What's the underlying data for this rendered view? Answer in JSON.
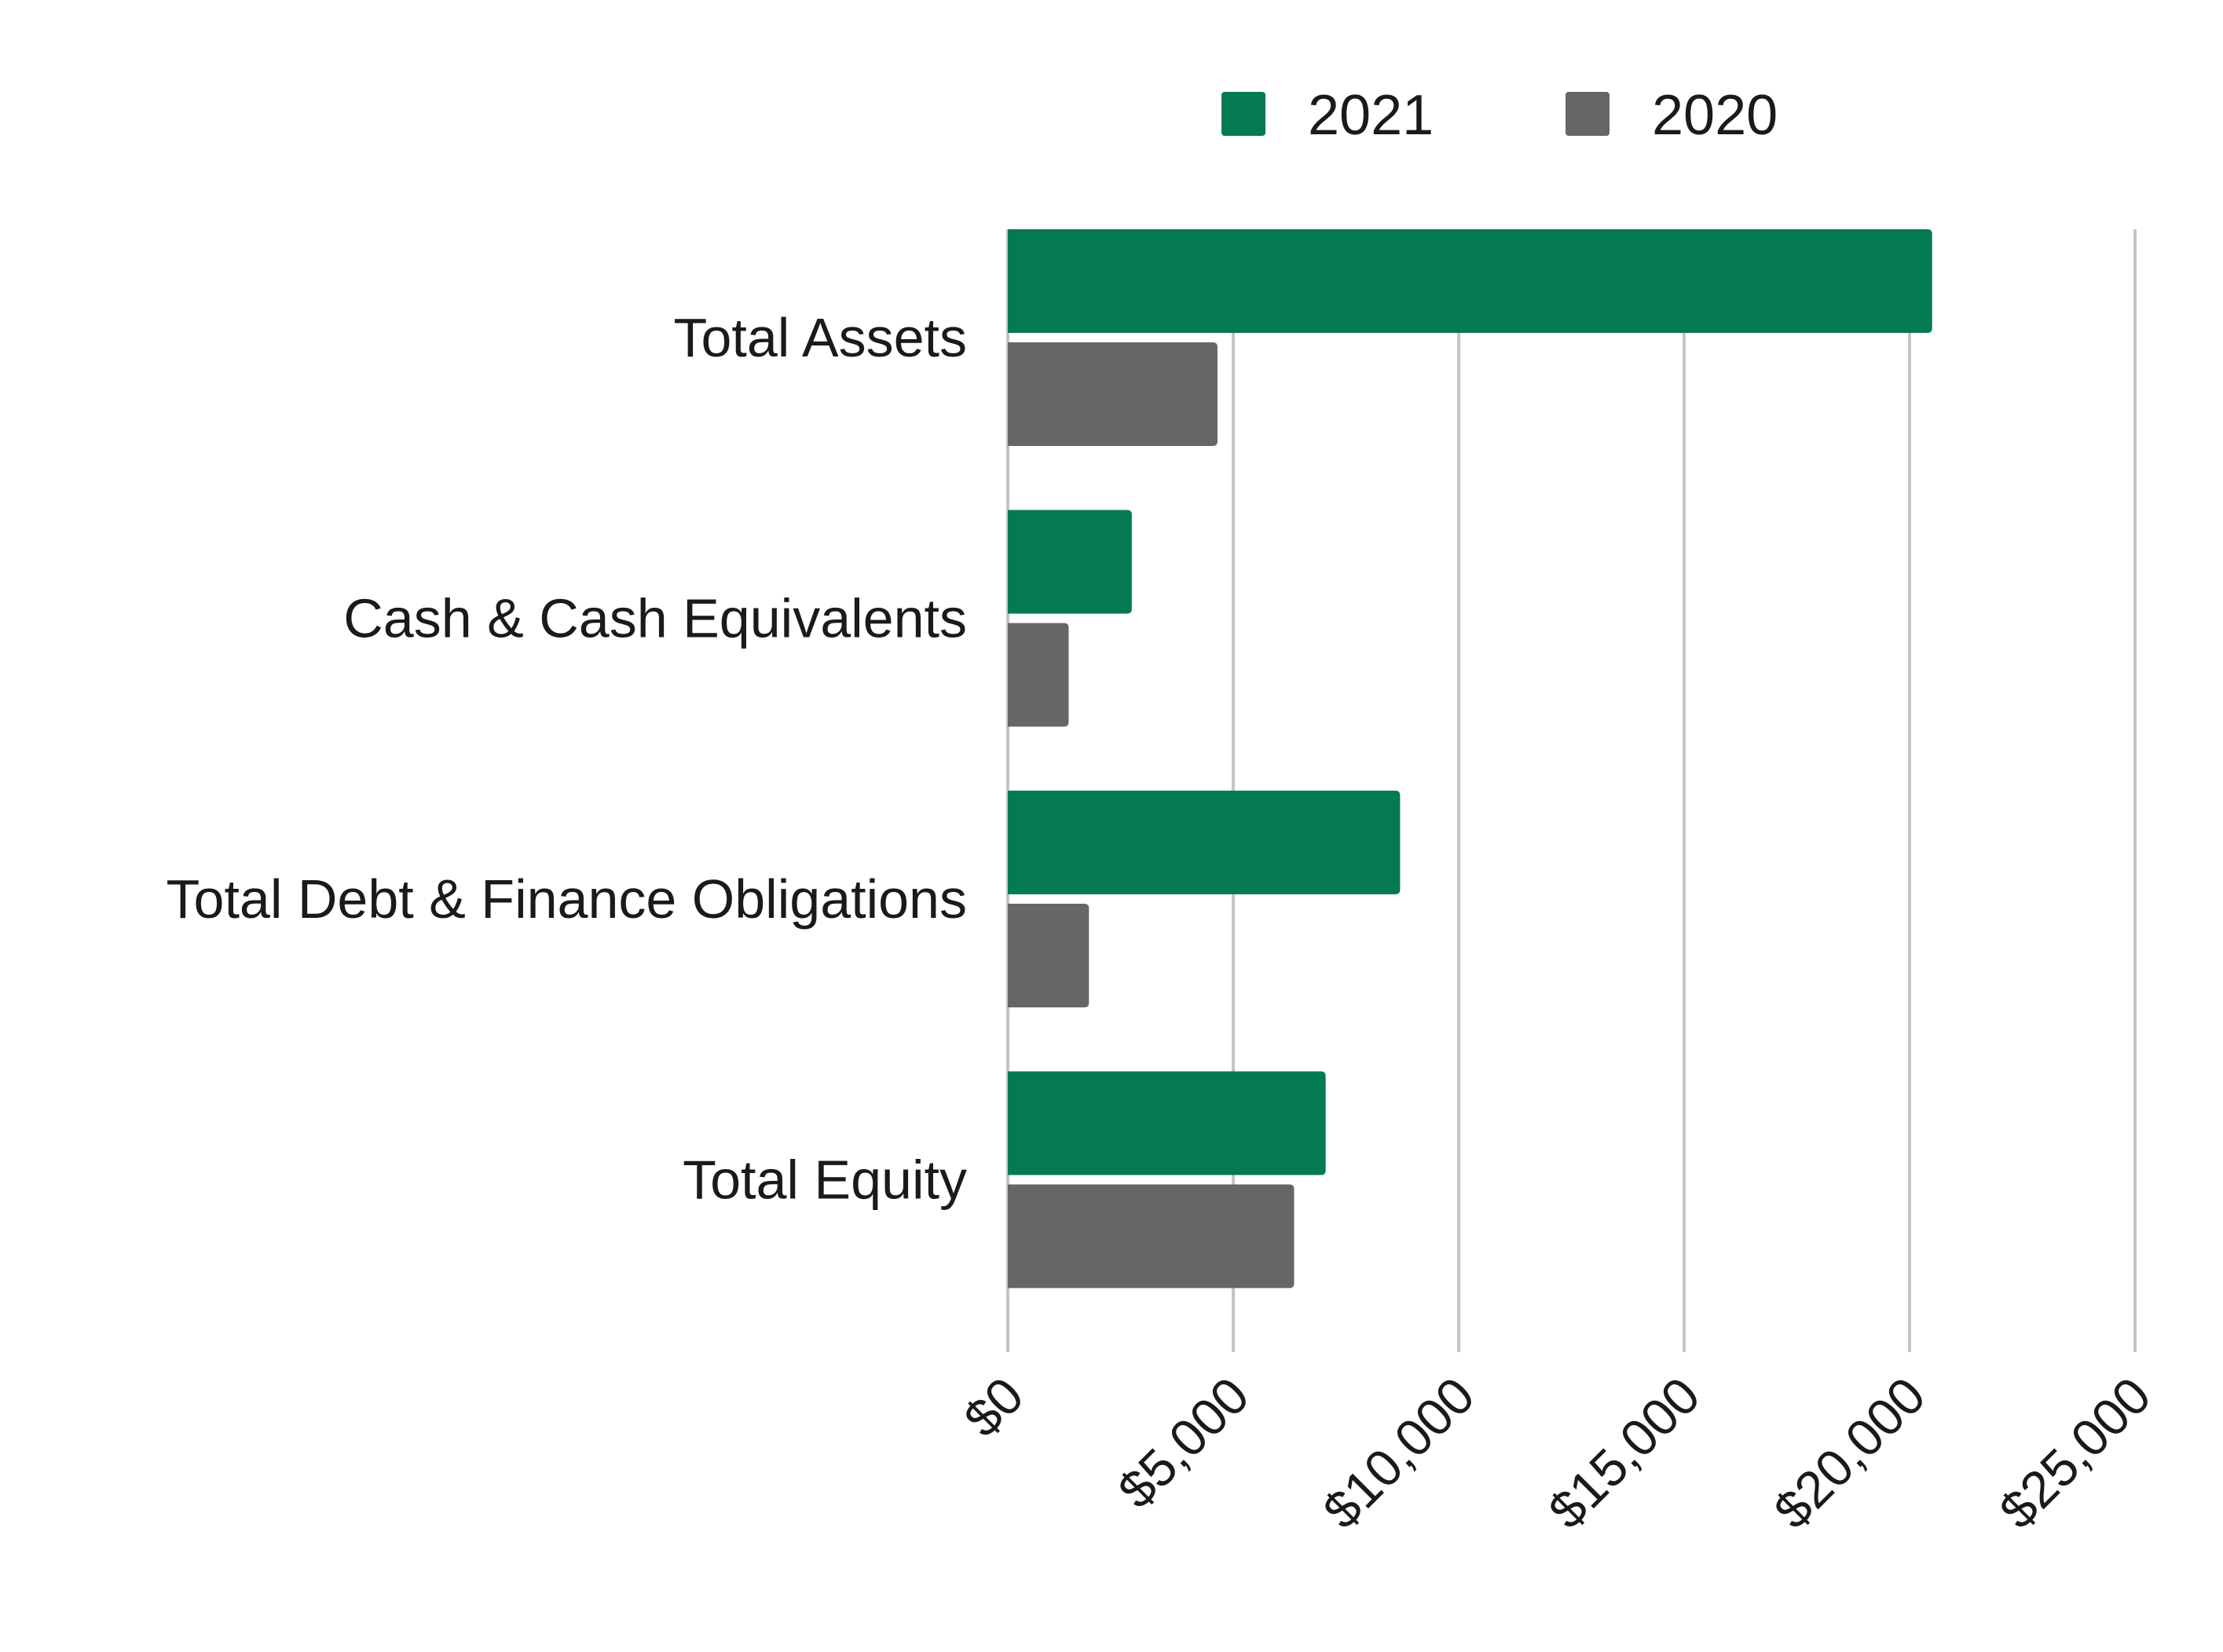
{
  "chart_data": {
    "type": "bar",
    "orientation": "horizontal",
    "categories": [
      "Total Assets",
      "Cash & Cash Equivalents",
      "Total Debt & Finance Obligations",
      "Total Equity"
    ],
    "series": [
      {
        "name": "2021",
        "color": "#037A52",
        "values": [
          20500,
          2750,
          8700,
          7050
        ]
      },
      {
        "name": "2020",
        "color": "#666666",
        "values": [
          4650,
          1350,
          1800,
          6350
        ]
      }
    ],
    "xlim": [
      0,
      25000
    ],
    "xticks": [
      0,
      5000,
      10000,
      15000,
      20000,
      25000
    ],
    "xtick_labels": [
      "$0",
      "$5,000",
      "$10,000",
      "$15,000",
      "$20,000",
      "$25,000"
    ],
    "title": "",
    "xlabel": "",
    "ylabel": "",
    "grid": true,
    "legend_position": "top"
  }
}
